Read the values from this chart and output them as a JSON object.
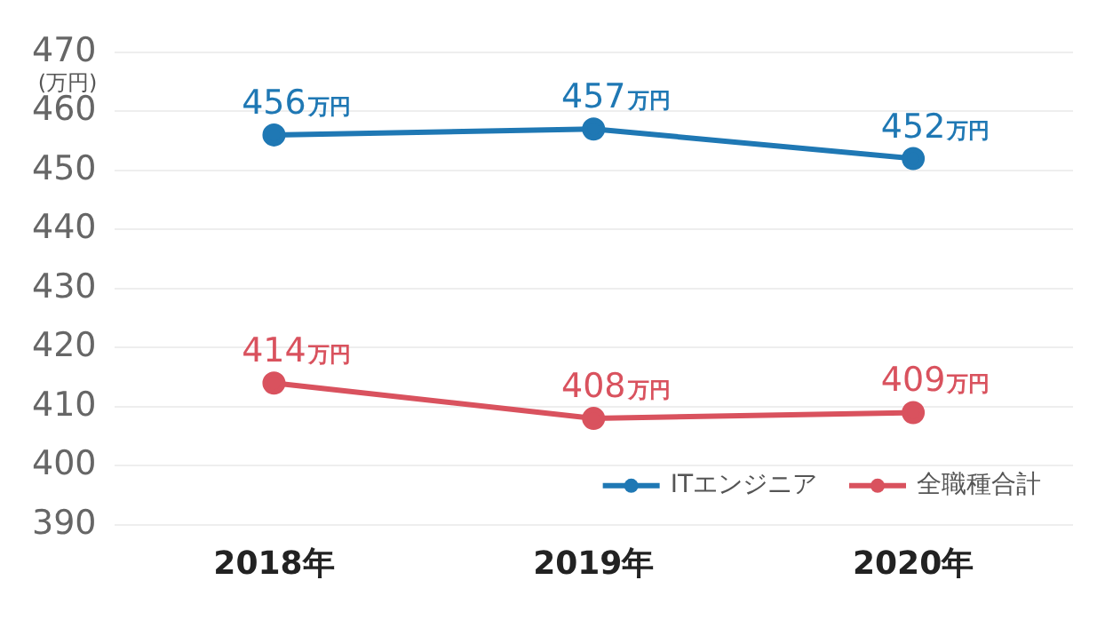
{
  "chart_data": {
    "type": "line",
    "ylabel": "(万円)",
    "categories": [
      "2018年",
      "2019年",
      "2020年"
    ],
    "series": [
      {
        "name": "ITエンジニア",
        "color": "#1f78b4",
        "values": [
          456,
          457,
          452
        ],
        "value_labels": [
          "456万円",
          "457万円",
          "452万円"
        ]
      },
      {
        "name": "全職種合計",
        "color": "#d9525e",
        "values": [
          414,
          408,
          409
        ],
        "value_labels": [
          "414万円",
          "408万円",
          "409万円"
        ]
      }
    ],
    "ylim": [
      390,
      470
    ],
    "yticks": [
      390,
      400,
      410,
      420,
      430,
      440,
      450,
      460,
      470
    ],
    "grid": "y",
    "legend": "bottom right",
    "marker": "circle",
    "line_style": "solid"
  }
}
